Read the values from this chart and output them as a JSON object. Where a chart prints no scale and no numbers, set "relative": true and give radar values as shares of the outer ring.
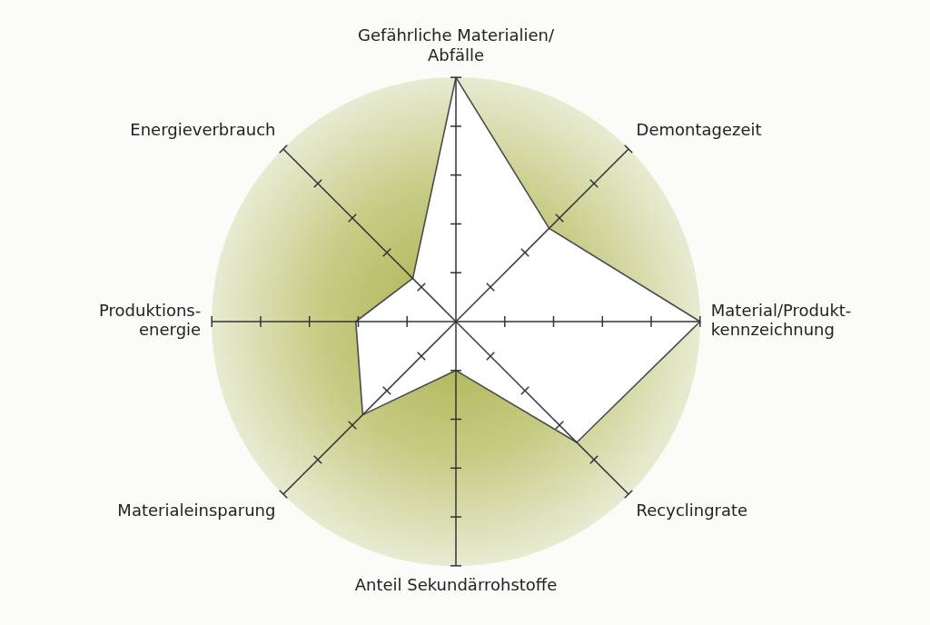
{
  "chart_data": {
    "type": "radar",
    "relative": true,
    "categories": [
      "Gefährliche Materialien/\nAbfälle",
      "Demontagezeit",
      "Material/Produkt-\nkennzeichnung",
      "Recyclingrate",
      "Anteil Sekundärrohstoffe",
      "Materialeinsparung",
      "Produktions-\nenergie",
      "Energieverbrauch"
    ],
    "series": [
      {
        "color": "#4a4a4a",
        "values": [
          1,
          0.54,
          1,
          0.7,
          0.2,
          0.54,
          0.41,
          0.25
        ]
      }
    ],
    "legend": false,
    "marker": "none",
    "grid": false
  }
}
